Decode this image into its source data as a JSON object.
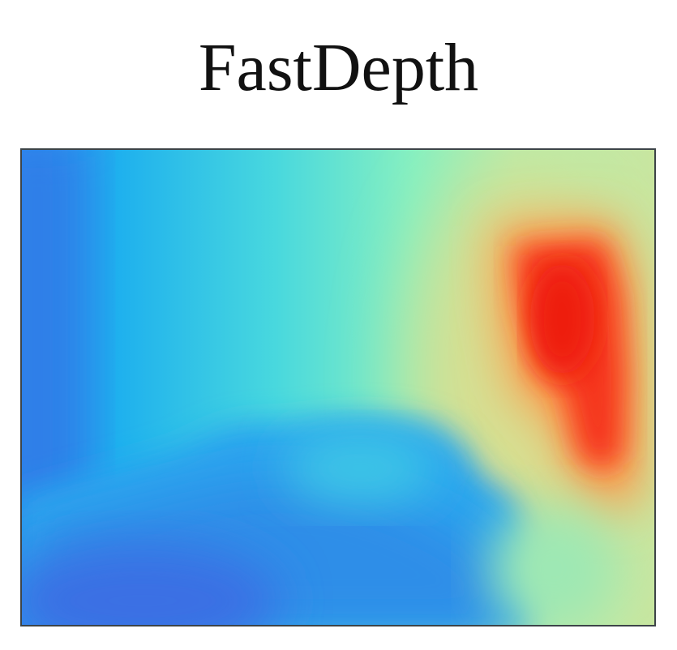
{
  "figure": {
    "title": "FastDepth"
  },
  "depth_map": {
    "colormap": "jet",
    "colors": {
      "far_blue": "#2f6fe8",
      "mid_blue": "#1fa8ee",
      "cyan": "#3fd0e6",
      "aqua_green": "#7ef0be",
      "yellow_green": "#c9e89a",
      "orange": "#ff8a3a",
      "red": "#f02a12"
    }
  }
}
